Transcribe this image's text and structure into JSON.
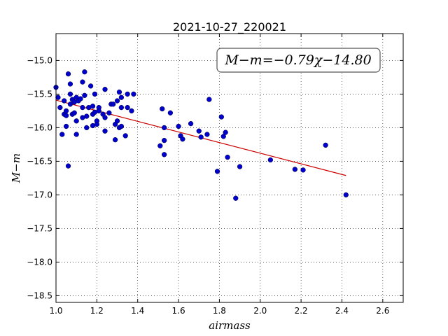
{
  "chart_data": {
    "type": "scatter",
    "title": "2021-10-27_220021",
    "xlabel": "airmass",
    "ylabel": "M−m",
    "xlim": [
      1.0,
      2.7
    ],
    "ylim": [
      -18.6,
      -14.6
    ],
    "ylim_inverted": true,
    "xticks": [
      "1.0",
      "1.2",
      "1.4",
      "1.6",
      "1.8",
      "2.0",
      "2.2",
      "2.4",
      "2.6"
    ],
    "yticks": [
      "−15.0",
      "−15.5",
      "−16.0",
      "−16.5",
      "−17.0",
      "−17.5",
      "−18.0",
      "−18.5"
    ],
    "grid": true,
    "annotation": "M−m=−0.79χ−14.80",
    "colors": {
      "points": "#0000cc",
      "fit_line": "#cc0000"
    },
    "fit": {
      "slope": -0.79,
      "intercept": -14.8,
      "x_range": [
        1.0,
        2.42
      ]
    },
    "points": [
      [
        1.0,
        -15.4
      ],
      [
        1.01,
        -15.55
      ],
      [
        1.02,
        -15.7
      ],
      [
        1.03,
        -16.1
      ],
      [
        1.04,
        -15.8
      ],
      [
        1.04,
        -15.6
      ],
      [
        1.05,
        -15.75
      ],
      [
        1.05,
        -15.98
      ],
      [
        1.05,
        -15.82
      ],
      [
        1.06,
        -15.2
      ],
      [
        1.06,
        -16.57
      ],
      [
        1.07,
        -15.35
      ],
      [
        1.07,
        -15.5
      ],
      [
        1.07,
        -15.65
      ],
      [
        1.08,
        -15.8
      ],
      [
        1.08,
        -15.58
      ],
      [
        1.09,
        -15.62
      ],
      [
        1.09,
        -15.78
      ],
      [
        1.1,
        -15.55
      ],
      [
        1.1,
        -15.9
      ],
      [
        1.1,
        -16.1
      ],
      [
        1.11,
        -15.6
      ],
      [
        1.12,
        -15.57
      ],
      [
        1.13,
        -15.32
      ],
      [
        1.13,
        -15.7
      ],
      [
        1.13,
        -15.85
      ],
      [
        1.14,
        -15.17
      ],
      [
        1.14,
        -15.52
      ],
      [
        1.15,
        -15.83
      ],
      [
        1.15,
        -16.0
      ],
      [
        1.16,
        -15.7
      ],
      [
        1.17,
        -15.38
      ],
      [
        1.18,
        -15.68
      ],
      [
        1.18,
        -15.8
      ],
      [
        1.18,
        -15.97
      ],
      [
        1.19,
        -15.5
      ],
      [
        1.19,
        -15.77
      ],
      [
        1.2,
        -15.9
      ],
      [
        1.2,
        -15.95
      ],
      [
        1.21,
        -15.7
      ],
      [
        1.21,
        -15.75
      ],
      [
        1.23,
        -15.8
      ],
      [
        1.24,
        -15.85
      ],
      [
        1.24,
        -15.43
      ],
      [
        1.24,
        -16.05
      ],
      [
        1.26,
        -15.78
      ],
      [
        1.27,
        -15.65
      ],
      [
        1.28,
        -15.65
      ],
      [
        1.29,
        -15.95
      ],
      [
        1.29,
        -16.18
      ],
      [
        1.3,
        -15.6
      ],
      [
        1.3,
        -15.9
      ],
      [
        1.31,
        -15.47
      ],
      [
        1.31,
        -16.0
      ],
      [
        1.32,
        -15.55
      ],
      [
        1.32,
        -15.7
      ],
      [
        1.32,
        -15.98
      ],
      [
        1.34,
        -16.12
      ],
      [
        1.35,
        -15.5
      ],
      [
        1.35,
        -15.7
      ],
      [
        1.37,
        -15.75
      ],
      [
        1.38,
        -15.5
      ],
      [
        1.51,
        -16.27
      ],
      [
        1.52,
        -15.72
      ],
      [
        1.53,
        -16.19
      ],
      [
        1.53,
        -16.4
      ],
      [
        1.53,
        -16.0
      ],
      [
        1.56,
        -15.78
      ],
      [
        1.6,
        -15.98
      ],
      [
        1.61,
        -16.12
      ],
      [
        1.62,
        -16.17
      ],
      [
        1.66,
        -15.94
      ],
      [
        1.7,
        -16.05
      ],
      [
        1.71,
        -16.14
      ],
      [
        1.74,
        -16.1
      ],
      [
        1.75,
        -15.58
      ],
      [
        1.79,
        -16.65
      ],
      [
        1.81,
        -15.84
      ],
      [
        1.82,
        -16.13
      ],
      [
        1.83,
        -16.07
      ],
      [
        1.84,
        -16.44
      ],
      [
        1.88,
        -17.05
      ],
      [
        1.9,
        -16.58
      ],
      [
        2.05,
        -16.48
      ],
      [
        2.17,
        -16.62
      ],
      [
        2.21,
        -16.63
      ],
      [
        2.32,
        -16.26
      ],
      [
        2.42,
        -17.0
      ]
    ]
  }
}
